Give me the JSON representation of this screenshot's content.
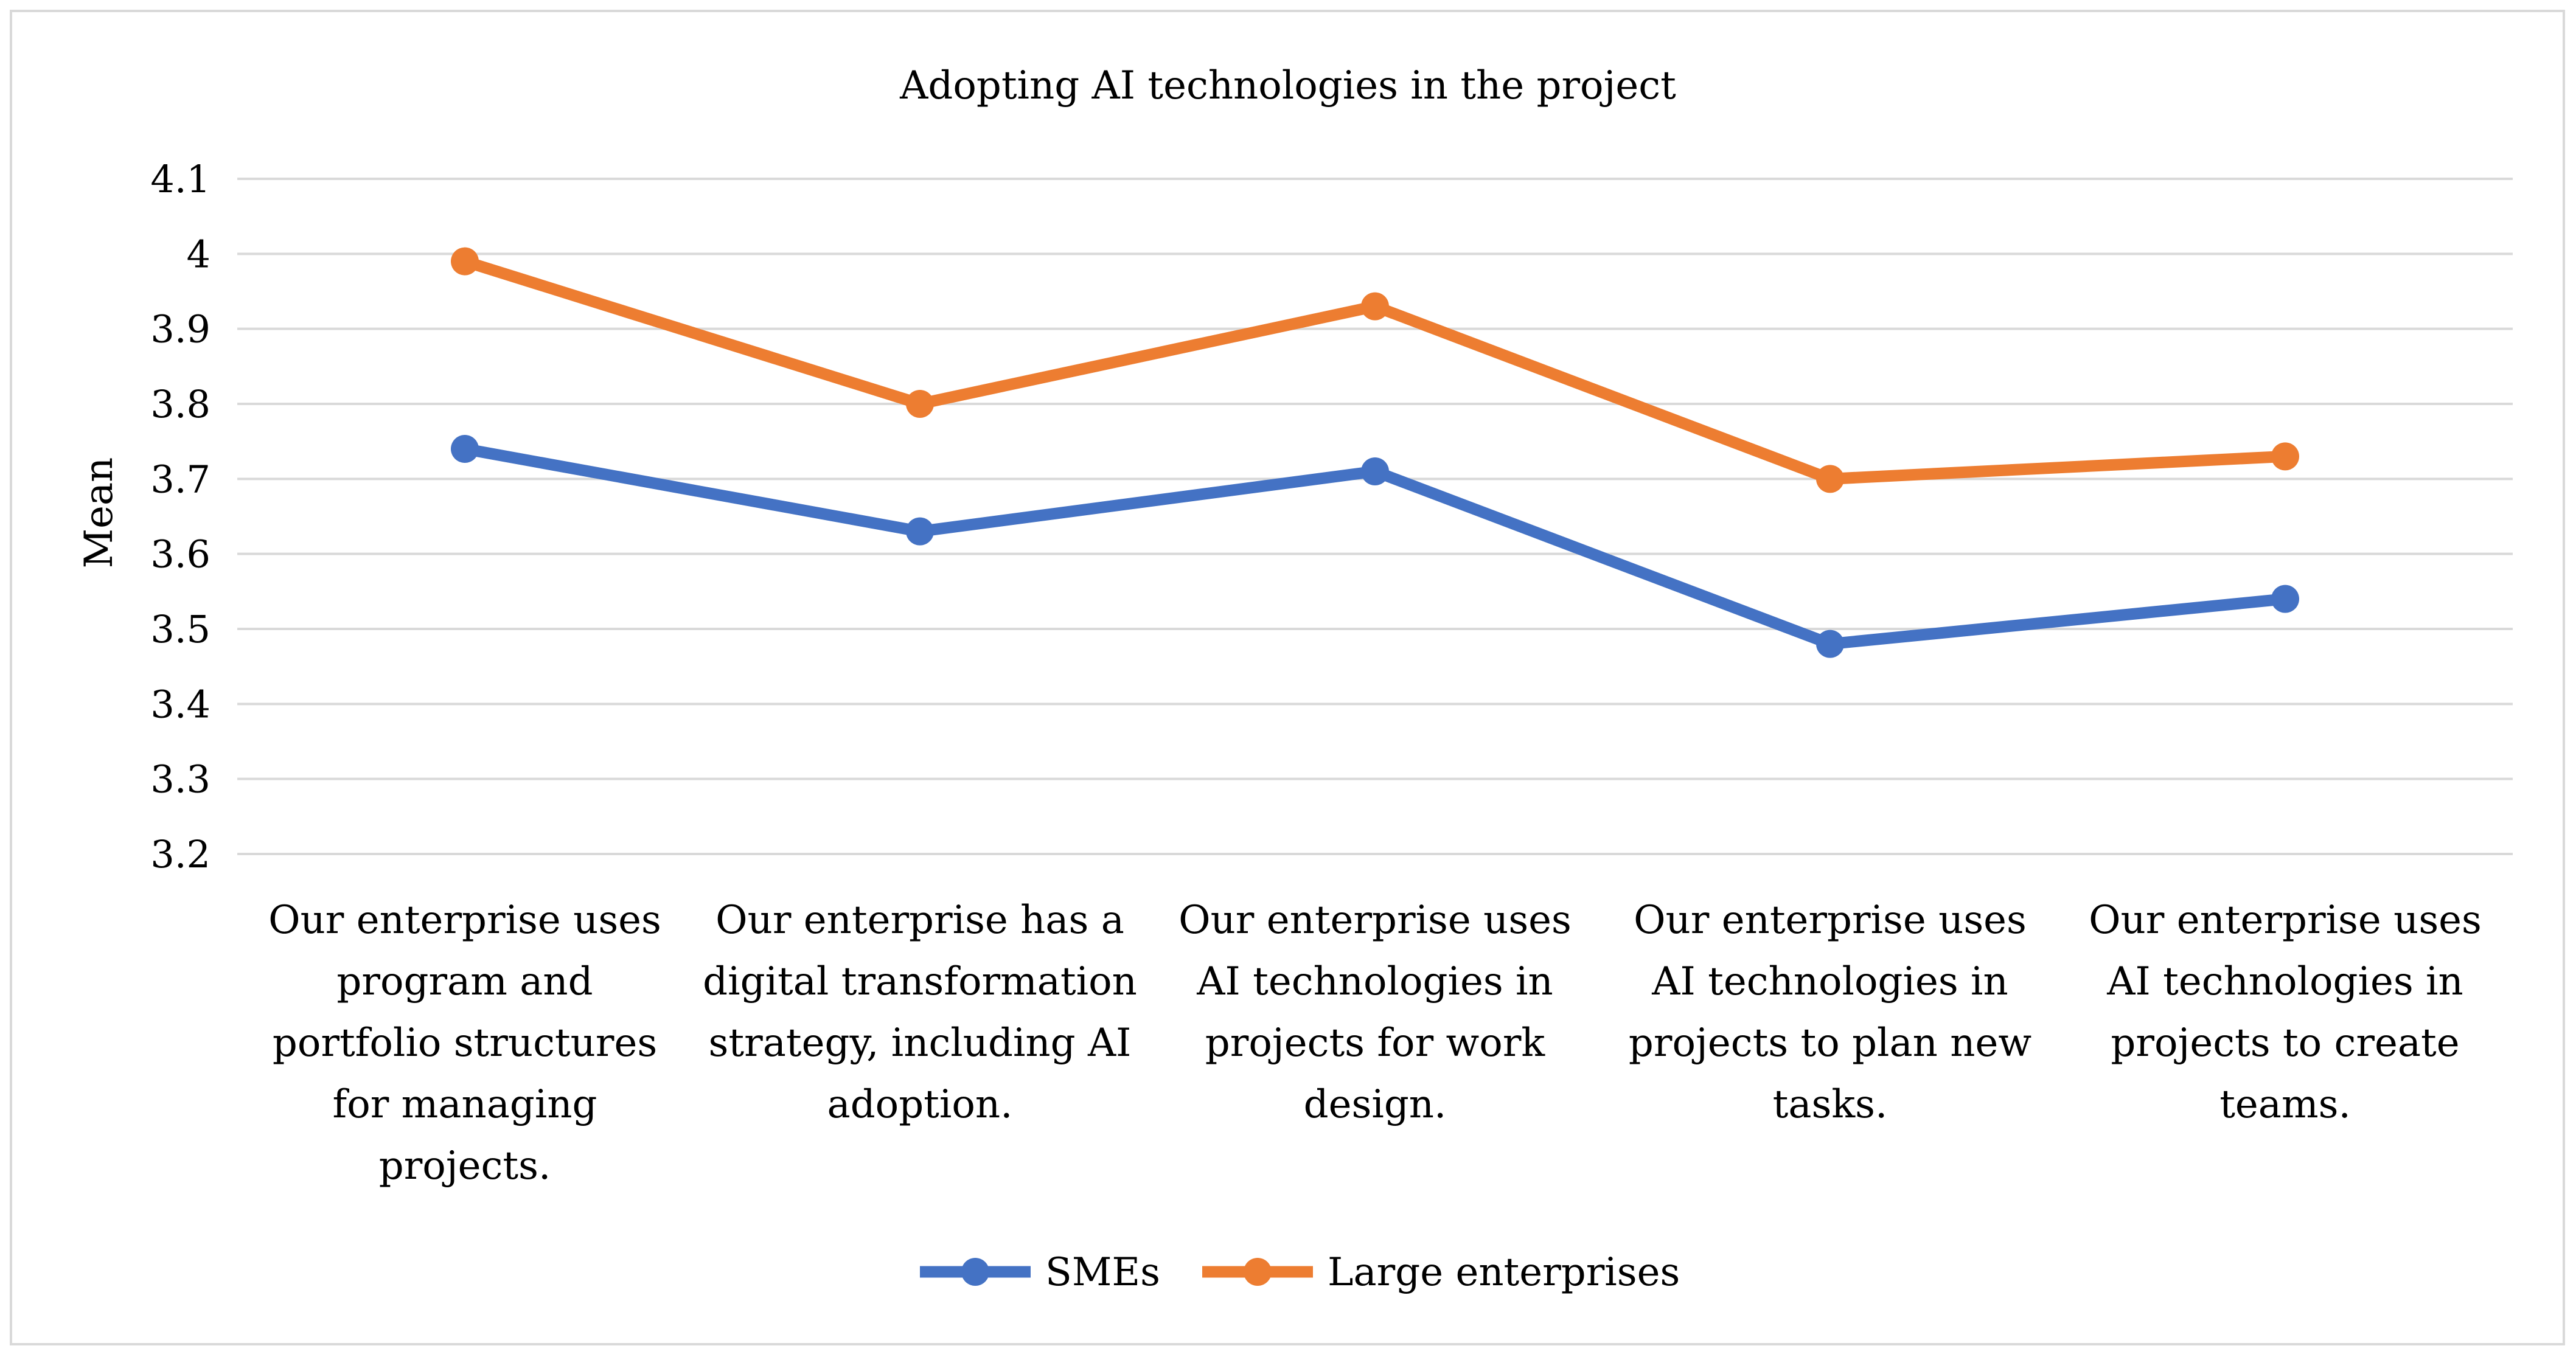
{
  "chart_data": {
    "type": "line",
    "title": "Adopting AI technologies in the project",
    "xlabel": "",
    "ylabel": "Mean",
    "ylim": [
      3.2,
      4.1
    ],
    "yticks": [
      "3.2",
      "3.3",
      "3.4",
      "3.5",
      "3.6",
      "3.7",
      "3.8",
      "3.9",
      "4",
      "4.1"
    ],
    "grid": true,
    "legend_position": "bottom",
    "categories": [
      [
        "Our enterprise uses",
        "program and",
        "portfolio structures",
        "for managing",
        "projects."
      ],
      [
        "Our enterprise has a",
        "digital transformation",
        "strategy, including AI",
        "adoption."
      ],
      [
        "Our enterprise uses",
        "AI technologies in",
        "projects for work",
        "design."
      ],
      [
        "Our enterprise uses",
        "AI technologies in",
        "projects to plan new",
        "tasks."
      ],
      [
        "Our enterprise uses",
        "AI technologies in",
        "projects to create",
        "teams."
      ]
    ],
    "series": [
      {
        "name": "SMEs",
        "color": "#4472c4",
        "values": [
          3.74,
          3.63,
          3.71,
          3.48,
          3.54
        ]
      },
      {
        "name": "Large enterprises",
        "color": "#ed7d31",
        "values": [
          3.99,
          3.8,
          3.93,
          3.7,
          3.73
        ]
      }
    ]
  }
}
